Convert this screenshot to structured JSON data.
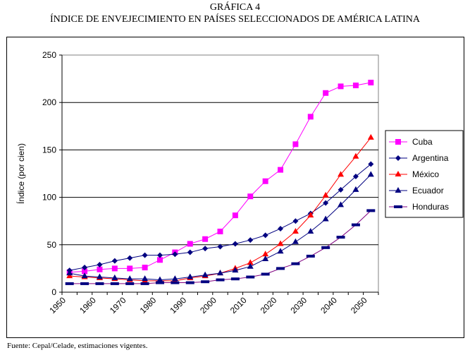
{
  "chart_data": {
    "type": "line",
    "title": "GRÁFICA 4",
    "subtitle": "ÍNDICE DE ENVEJECIMIENTO EN PAÍSES SELECCIONADOS DE AMÉRICA LATINA",
    "xlabel": "",
    "ylabel": "Índice (por cien)",
    "ylim": [
      0,
      250
    ],
    "yticks": [
      0,
      50,
      100,
      150,
      200,
      250
    ],
    "categories": [
      "1950",
      "1955",
      "1960",
      "1965",
      "1970",
      "1975",
      "1980",
      "1985",
      "1990",
      "1995",
      "2000",
      "2005",
      "2010",
      "2015",
      "2020",
      "2025",
      "2030",
      "2035",
      "2040",
      "2045",
      "2050"
    ],
    "xtick_labels": [
      "1950",
      "1960",
      "1970",
      "1980",
      "1990",
      "2000",
      "2010",
      "2020",
      "2030",
      "2040",
      "2050"
    ],
    "grid": true,
    "legend": "right",
    "series": [
      {
        "name": "Cuba",
        "color": "#ff00ff",
        "marker": "square",
        "values": [
          21,
          22,
          24,
          25,
          25,
          26,
          34,
          42,
          51,
          56,
          64,
          81,
          101,
          117,
          129,
          156,
          185,
          210,
          217,
          218,
          221
        ]
      },
      {
        "name": "Argentina",
        "color": "#000080",
        "marker": "diamond",
        "values": [
          23,
          26,
          29,
          33,
          36,
          39,
          39,
          40,
          42,
          46,
          48,
          51,
          55,
          60,
          67,
          75,
          83,
          94,
          108,
          122,
          135
        ]
      },
      {
        "name": "México",
        "color": "#ff0000",
        "marker": "triangle",
        "values": [
          17,
          16,
          15,
          14,
          13,
          12,
          12,
          12,
          15,
          17,
          20,
          25,
          31,
          40,
          51,
          64,
          81,
          102,
          124,
          143,
          163
        ]
      },
      {
        "name": "Ecuador",
        "color": "#000080",
        "marker": "triangle",
        "values": [
          20,
          17,
          16,
          15,
          14,
          14,
          13,
          14,
          16,
          18,
          20,
          23,
          27,
          35,
          43,
          53,
          64,
          77,
          92,
          108,
          124
        ]
      },
      {
        "name": "Honduras",
        "color": "#000080",
        "marker": "dash",
        "values": [
          9,
          9,
          9,
          9,
          9,
          9,
          10,
          10,
          10,
          11,
          13,
          14,
          16,
          19,
          25,
          30,
          38,
          47,
          58,
          71,
          86
        ]
      }
    ]
  },
  "source": "Fuente: Cepal/Celade, estimaciones vigentes."
}
